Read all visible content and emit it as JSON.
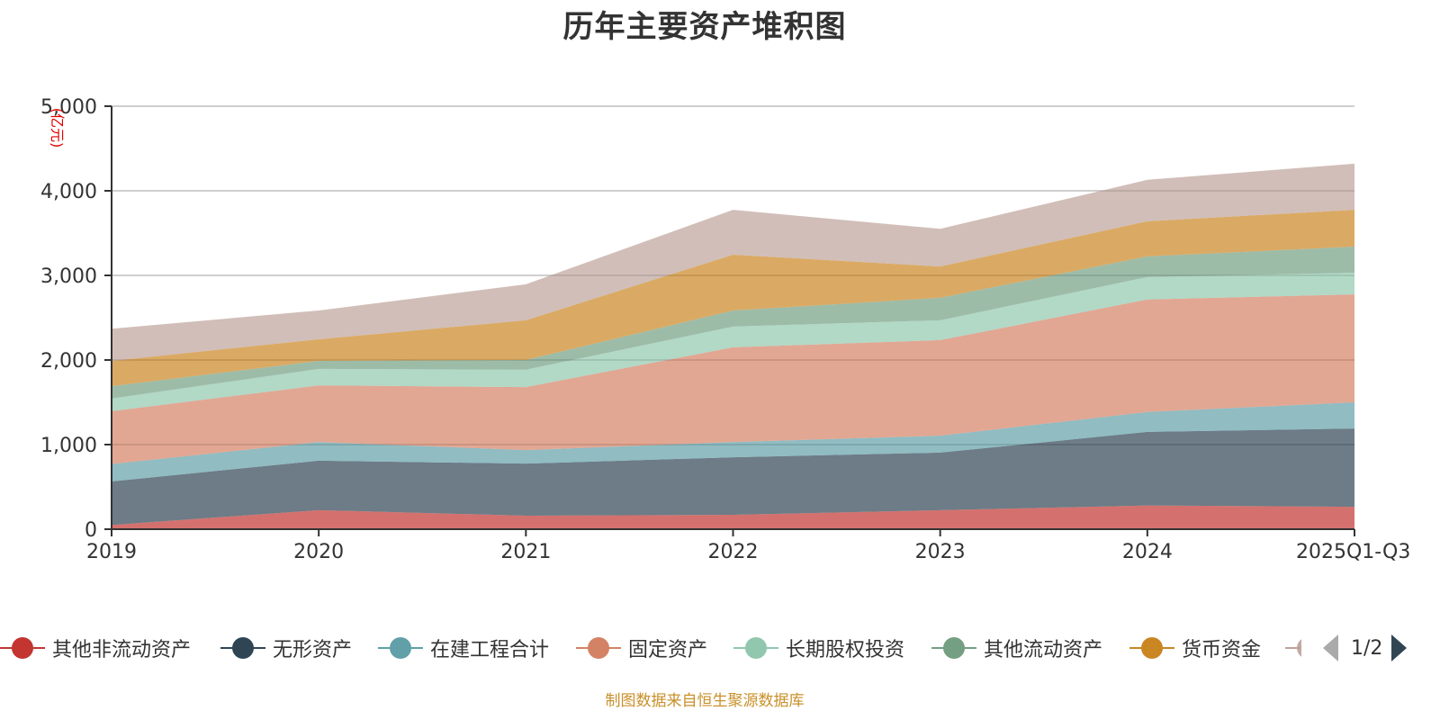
{
  "chart_data": {
    "type": "area",
    "stacked": true,
    "title": "历年主要资产堆积图",
    "xlabel": "",
    "ylabel": "(亿元)",
    "ylim": [
      0,
      5000
    ],
    "yticks": [
      0,
      1000,
      2000,
      3000,
      4000,
      5000
    ],
    "ytick_labels": [
      "0",
      "1,000",
      "2,000",
      "3,000",
      "4,000",
      "5,000"
    ],
    "grid": true,
    "legend_position": "bottom",
    "categories": [
      "2019",
      "2020",
      "2021",
      "2022",
      "2023",
      "2024",
      "2025Q1-Q3"
    ],
    "series": [
      {
        "name": "其他非流动资产",
        "color": "#c23531",
        "values": [
          50,
          225,
          160,
          170,
          225,
          280,
          265
        ]
      },
      {
        "name": "无形资产",
        "color": "#2f4554",
        "values": [
          515,
          585,
          615,
          680,
          680,
          870,
          925
        ]
      },
      {
        "name": "在建工程合计",
        "color": "#61a0a8",
        "values": [
          205,
          220,
          160,
          180,
          200,
          235,
          310
        ]
      },
      {
        "name": "固定资产",
        "color": "#d48265",
        "values": [
          625,
          670,
          745,
          1120,
          1130,
          1330,
          1275
        ]
      },
      {
        "name": "长期股权投资",
        "color": "#91c7ae",
        "values": [
          150,
          195,
          205,
          245,
          235,
          265,
          255
        ]
      },
      {
        "name": "其他流动资产",
        "color": "#749f83",
        "values": [
          145,
          95,
          115,
          190,
          265,
          245,
          310
        ]
      },
      {
        "name": "货币资金",
        "color": "#ca8622",
        "values": [
          300,
          255,
          470,
          660,
          370,
          415,
          435
        ]
      },
      {
        "name": "",
        "color": "#bda29a",
        "values": [
          380,
          340,
          425,
          530,
          445,
          490,
          545
        ]
      }
    ]
  },
  "legend": {
    "page_indicator": "1/2"
  },
  "footer": {
    "source_note": "制图数据来自恒生聚源数据库"
  }
}
